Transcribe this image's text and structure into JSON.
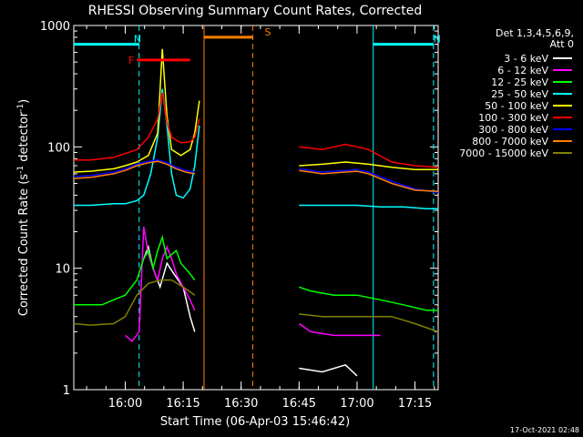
{
  "chart_data": {
    "type": "line",
    "title": "RHESSI Observing Summary Count Rates, Corrected",
    "xlabel": "Start Time (06-Apr-03 15:46:42)",
    "ylabel": "Corrected Count Rate (s",
    "ylabel_sup1": "-1",
    "ylabel_mid": " detector",
    "ylabel_sup2": "-1",
    "ylabel_end": ")",
    "yscale": "log",
    "ylim": [
      1,
      1000
    ],
    "yticks": [
      {
        "value": 1,
        "label": "1"
      },
      {
        "value": 10,
        "label": "10"
      },
      {
        "value": 100,
        "label": "100"
      },
      {
        "value": 1000,
        "label": "1000"
      }
    ],
    "xlim": [
      15.778,
      17.35
    ],
    "xticks": [
      {
        "value": 16.0,
        "label": "16:00"
      },
      {
        "value": 16.25,
        "label": "16:15"
      },
      {
        "value": 16.5,
        "label": "16:30"
      },
      {
        "value": 16.75,
        "label": "16:45"
      },
      {
        "value": 17.0,
        "label": "17:00"
      },
      {
        "value": 17.25,
        "label": "17:15"
      }
    ],
    "legend_header": [
      "Det 1,3,4,5,6,9,",
      "Att 0"
    ],
    "legend_position": "right",
    "series": [
      {
        "name": "3 - 6 keV",
        "color": "#ffffff",
        "points": [
          [
            16.0,
            0
          ],
          [
            16.05,
            0
          ],
          [
            16.08,
            12
          ],
          [
            16.1,
            15
          ],
          [
            16.12,
            10
          ],
          [
            16.15,
            7
          ],
          [
            16.18,
            11
          ],
          [
            16.21,
            9
          ],
          [
            16.25,
            7
          ],
          [
            16.28,
            4
          ],
          [
            16.3,
            3
          ],
          [
            16.33,
            0
          ],
          [
            16.7,
            0
          ],
          [
            16.75,
            1.5
          ],
          [
            16.85,
            1.4
          ],
          [
            16.95,
            1.6
          ],
          [
            17.0,
            1.3
          ],
          [
            17.02,
            0
          ]
        ]
      },
      {
        "name": "6 - 12 keV",
        "color": "#ff00ff",
        "points": [
          [
            15.98,
            0
          ],
          [
            16.0,
            2.8
          ],
          [
            16.03,
            2.5
          ],
          [
            16.06,
            3
          ],
          [
            16.08,
            22
          ],
          [
            16.1,
            13
          ],
          [
            16.12,
            10
          ],
          [
            16.14,
            8
          ],
          [
            16.16,
            12
          ],
          [
            16.18,
            15
          ],
          [
            16.2,
            12
          ],
          [
            16.22,
            9
          ],
          [
            16.25,
            7
          ],
          [
            16.28,
            5.5
          ],
          [
            16.3,
            4.5
          ],
          [
            16.33,
            0
          ],
          [
            16.7,
            0
          ],
          [
            16.75,
            3.5
          ],
          [
            16.8,
            3
          ],
          [
            16.9,
            2.8
          ],
          [
            17.0,
            2.8
          ],
          [
            17.1,
            2.8
          ],
          [
            17.13,
            0
          ]
        ]
      },
      {
        "name": "12 - 25 keV",
        "color": "#00ff00",
        "points": [
          [
            15.778,
            5
          ],
          [
            15.85,
            5
          ],
          [
            15.9,
            5
          ],
          [
            15.95,
            5.5
          ],
          [
            16.0,
            6
          ],
          [
            16.05,
            8
          ],
          [
            16.08,
            12
          ],
          [
            16.1,
            14
          ],
          [
            16.12,
            10
          ],
          [
            16.14,
            14
          ],
          [
            16.16,
            18
          ],
          [
            16.18,
            12
          ],
          [
            16.2,
            13
          ],
          [
            16.22,
            14
          ],
          [
            16.24,
            11
          ],
          [
            16.28,
            9
          ],
          [
            16.3,
            8
          ],
          [
            16.33,
            0
          ],
          [
            16.7,
            0
          ],
          [
            16.75,
            7
          ],
          [
            16.8,
            6.5
          ],
          [
            16.9,
            6
          ],
          [
            17.0,
            6
          ],
          [
            17.1,
            5.5
          ],
          [
            17.2,
            5
          ],
          [
            17.3,
            4.5
          ],
          [
            17.35,
            4.5
          ]
        ]
      },
      {
        "name": "25 - 50 keV",
        "color": "#00ffff",
        "points": [
          [
            15.778,
            33
          ],
          [
            15.85,
            33
          ],
          [
            15.95,
            34
          ],
          [
            16.0,
            34
          ],
          [
            16.05,
            36
          ],
          [
            16.08,
            40
          ],
          [
            16.11,
            60
          ],
          [
            16.14,
            120
          ],
          [
            16.16,
            300
          ],
          [
            16.18,
            150
          ],
          [
            16.2,
            60
          ],
          [
            16.22,
            40
          ],
          [
            16.25,
            38
          ],
          [
            16.28,
            45
          ],
          [
            16.3,
            70
          ],
          [
            16.32,
            150
          ],
          [
            16.33,
            0
          ],
          [
            16.7,
            0
          ],
          [
            16.75,
            33
          ],
          [
            16.85,
            33
          ],
          [
            17.0,
            33
          ],
          [
            17.1,
            32
          ],
          [
            17.2,
            32
          ],
          [
            17.3,
            31
          ],
          [
            17.35,
            31
          ]
        ]
      },
      {
        "name": "50 - 100 keV",
        "color": "#ffff00",
        "points": [
          [
            15.778,
            62
          ],
          [
            15.85,
            63
          ],
          [
            15.95,
            66
          ],
          [
            16.0,
            70
          ],
          [
            16.05,
            75
          ],
          [
            16.1,
            85
          ],
          [
            16.14,
            130
          ],
          [
            16.16,
            640
          ],
          [
            16.18,
            180
          ],
          [
            16.2,
            95
          ],
          [
            16.24,
            85
          ],
          [
            16.28,
            95
          ],
          [
            16.3,
            130
          ],
          [
            16.32,
            240
          ],
          [
            16.33,
            0
          ],
          [
            16.7,
            0
          ],
          [
            16.75,
            70
          ],
          [
            16.85,
            72
          ],
          [
            16.95,
            75
          ],
          [
            17.05,
            72
          ],
          [
            17.15,
            68
          ],
          [
            17.25,
            65
          ],
          [
            17.35,
            65
          ]
        ]
      },
      {
        "name": "100 - 300 keV",
        "color": "#ff0000",
        "points": [
          [
            15.778,
            78
          ],
          [
            15.85,
            78
          ],
          [
            15.95,
            82
          ],
          [
            16.0,
            88
          ],
          [
            16.05,
            95
          ],
          [
            16.1,
            120
          ],
          [
            16.14,
            170
          ],
          [
            16.16,
            280
          ],
          [
            16.18,
            160
          ],
          [
            16.2,
            120
          ],
          [
            16.24,
            108
          ],
          [
            16.28,
            110
          ],
          [
            16.3,
            120
          ],
          [
            16.32,
            170
          ],
          [
            16.33,
            0
          ],
          [
            16.7,
            0
          ],
          [
            16.75,
            100
          ],
          [
            16.85,
            95
          ],
          [
            16.95,
            105
          ],
          [
            17.0,
            100
          ],
          [
            17.05,
            95
          ],
          [
            17.15,
            75
          ],
          [
            17.25,
            70
          ],
          [
            17.35,
            68
          ]
        ]
      },
      {
        "name": "300 - 800 keV",
        "color": "#0000ff",
        "points": [
          [
            15.778,
            57
          ],
          [
            15.85,
            58
          ],
          [
            15.95,
            62
          ],
          [
            16.0,
            66
          ],
          [
            16.05,
            72
          ],
          [
            16.1,
            76
          ],
          [
            16.14,
            78
          ],
          [
            16.18,
            74
          ],
          [
            16.22,
            68
          ],
          [
            16.26,
            64
          ],
          [
            16.3,
            62
          ],
          [
            16.33,
            0
          ],
          [
            16.7,
            0
          ],
          [
            16.75,
            66
          ],
          [
            16.85,
            62
          ],
          [
            16.95,
            64
          ],
          [
            17.0,
            65
          ],
          [
            17.05,
            62
          ],
          [
            17.15,
            52
          ],
          [
            17.25,
            45
          ],
          [
            17.35,
            42
          ]
        ]
      },
      {
        "name": "800 - 7000 keV",
        "color": "#ff8000",
        "points": [
          [
            15.778,
            55
          ],
          [
            15.85,
            56
          ],
          [
            15.95,
            60
          ],
          [
            16.0,
            64
          ],
          [
            16.05,
            70
          ],
          [
            16.1,
            74
          ],
          [
            16.14,
            76
          ],
          [
            16.18,
            72
          ],
          [
            16.22,
            66
          ],
          [
            16.26,
            62
          ],
          [
            16.3,
            60
          ],
          [
            16.33,
            0
          ],
          [
            16.7,
            0
          ],
          [
            16.75,
            64
          ],
          [
            16.85,
            60
          ],
          [
            16.95,
            62
          ],
          [
            17.0,
            63
          ],
          [
            17.05,
            60
          ],
          [
            17.15,
            50
          ],
          [
            17.25,
            44
          ],
          [
            17.35,
            43
          ]
        ]
      },
      {
        "name": "7000 - 15000 keV",
        "color": "#808000",
        "points": [
          [
            15.778,
            3.5
          ],
          [
            15.85,
            3.4
          ],
          [
            15.95,
            3.5
          ],
          [
            16.0,
            4
          ],
          [
            16.05,
            6
          ],
          [
            16.1,
            7.5
          ],
          [
            16.15,
            8
          ],
          [
            16.2,
            8
          ],
          [
            16.25,
            7
          ],
          [
            16.3,
            6
          ],
          [
            16.33,
            0
          ],
          [
            16.7,
            0
          ],
          [
            16.75,
            4.2
          ],
          [
            16.85,
            4
          ],
          [
            16.95,
            4
          ],
          [
            17.05,
            4
          ],
          [
            17.15,
            4
          ],
          [
            17.25,
            3.5
          ],
          [
            17.35,
            3
          ]
        ]
      }
    ],
    "annotations": [
      {
        "label": "N",
        "color": "#00ffff",
        "value": 700,
        "start": 15.778,
        "end": 16.06,
        "end_x": 16.06
      },
      {
        "label": "N",
        "color": "#00ffff",
        "value": 700,
        "start": 17.07,
        "end": 17.33,
        "end_x": 17.33
      },
      {
        "label": "F",
        "color": "#ff0000",
        "value": 520,
        "start": 16.05,
        "end": 16.28
      },
      {
        "label": "S",
        "color": "#ff8000",
        "value": 800,
        "start": 16.34,
        "end": 16.55,
        "end_x": 16.55
      }
    ],
    "vertical_markers": [
      {
        "x": 16.06,
        "color": "#00ffff",
        "style": "dashed"
      },
      {
        "x": 17.07,
        "color": "#00ffff",
        "style": "solid"
      },
      {
        "x": 17.33,
        "color": "#00ffff",
        "style": "dashed"
      },
      {
        "x": 16.34,
        "color": "#ff8000",
        "style": "solid"
      },
      {
        "x": 16.55,
        "color": "#ff8000",
        "style": "dashed"
      }
    ]
  },
  "footer": {
    "timestamp": "17-Oct-2021 02:48"
  }
}
